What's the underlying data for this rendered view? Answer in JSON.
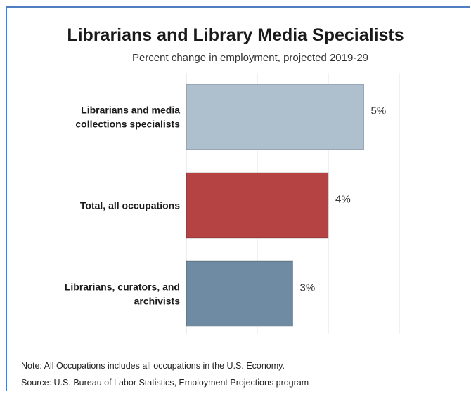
{
  "chart_data": {
    "type": "bar",
    "orientation": "horizontal",
    "title": "Librarians and Library Media Specialists",
    "subtitle": "Percent change in employment, projected 2019-29",
    "categories": [
      "Librarians and media collections specialists",
      "Total, all occupations",
      "Librarians, curators, and archivists"
    ],
    "category_lines": [
      [
        "Librarians and media",
        "collections specialists"
      ],
      [
        "Total, all occupations"
      ],
      [
        "Librarians, curators, and",
        "archivists"
      ]
    ],
    "values": [
      5,
      4,
      3
    ],
    "value_labels": [
      "5%",
      "4%",
      "3%"
    ],
    "colors": [
      "#aebfcd",
      "#b64344",
      "#6f8ba4"
    ],
    "xlim": [
      0,
      8
    ],
    "grid": true,
    "unit": "%"
  },
  "notes": {
    "note": "Note: All Occupations includes all occupations in the U.S. Economy.",
    "source": "Source: U.S. Bureau of Labor Statistics, Employment Projections program"
  }
}
